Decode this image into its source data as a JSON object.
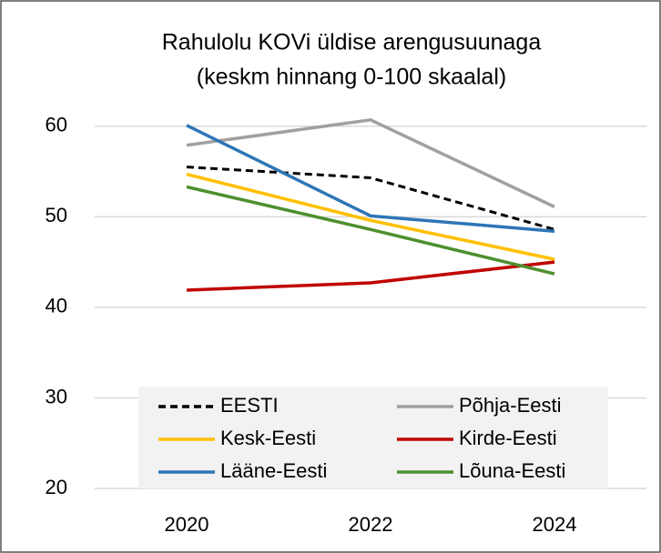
{
  "chart_data": {
    "type": "line",
    "title": [
      "Rahulolu KOVi üldise arengusuunaga",
      "(keskm hinnang 0-100 skaalal)"
    ],
    "categories": [
      "2020",
      "2022",
      "2024"
    ],
    "series": [
      {
        "name": "EESTI",
        "color": "#000000",
        "dashed": true,
        "values": [
          55.5,
          54.3,
          48.6
        ]
      },
      {
        "name": "Põhja-Eesti",
        "color": "#a0a0a0",
        "values": [
          57.9,
          60.7,
          51.1
        ]
      },
      {
        "name": "Kesk-Eesti",
        "color": "#ffc000",
        "values": [
          54.7,
          49.6,
          45.3
        ]
      },
      {
        "name": "Kirde-Eesti",
        "color": "#c00000",
        "values": [
          41.9,
          42.7,
          45.0
        ]
      },
      {
        "name": "Lääne-Eesti",
        "color": "#2e75b6",
        "values": [
          60.1,
          50.1,
          48.4
        ]
      },
      {
        "name": "Lõuna-Eesti",
        "color": "#4e8f2f",
        "values": [
          53.3,
          48.6,
          43.7
        ]
      }
    ],
    "ylim": [
      20,
      65
    ],
    "yticks": [
      20,
      30,
      40,
      50,
      60
    ],
    "grid": true,
    "legend": "bottom"
  }
}
